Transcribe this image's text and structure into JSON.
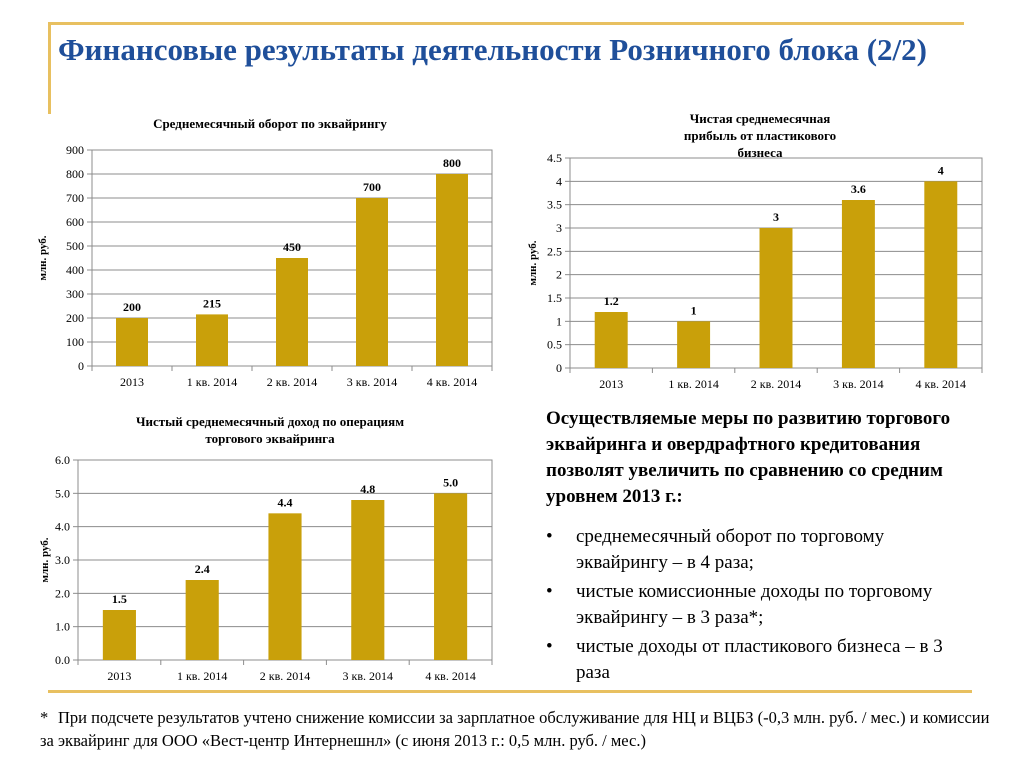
{
  "slide": {
    "title": "Финансовые результаты деятельности Розничного блока (2/2)",
    "accent_color": "#e8c060",
    "title_color": "#1f4f9a",
    "bar_color": "#c9a00a"
  },
  "chart_data": [
    {
      "type": "bar",
      "title": "Среднемесячный оборот по эквайрингу",
      "ylabel": "млн. руб.",
      "categories": [
        "2013",
        "1 кв. 2014",
        "2 кв. 2014",
        "3 кв. 2014",
        "4 кв. 2014"
      ],
      "values": [
        200,
        215,
        450,
        700,
        800
      ],
      "data_labels": [
        "200",
        "215",
        "450",
        "700",
        "800"
      ],
      "ylim": [
        0,
        900
      ],
      "ticks": [
        "0",
        "100",
        "200",
        "300",
        "400",
        "500",
        "600",
        "700",
        "800",
        "900"
      ],
      "grid": true
    },
    {
      "type": "bar",
      "title": "Чистая среднемесячная прибыль от пластикового бизнеса",
      "ylabel": "млн. руб.",
      "categories": [
        "2013",
        "1 кв. 2014",
        "2 кв. 2014",
        "3 кв. 2014",
        "4 кв. 2014"
      ],
      "values": [
        1.2,
        1,
        3,
        3.6,
        4
      ],
      "data_labels": [
        "1.2",
        "1",
        "3",
        "3.6",
        "4"
      ],
      "ylim": [
        0,
        4.5
      ],
      "ticks": [
        "0",
        "0.5",
        "1",
        "1.5",
        "2",
        "2.5",
        "3",
        "3.5",
        "4",
        "4.5"
      ],
      "grid": true
    },
    {
      "type": "bar",
      "title": "Чистый среднемесячный доход по операциям торгового эквайринга",
      "ylabel": "млн. руб.",
      "categories": [
        "2013",
        "1 кв. 2014",
        "2 кв. 2014",
        "3 кв. 2014",
        "4 кв. 2014"
      ],
      "values": [
        1.5,
        2.4,
        4.4,
        4.8,
        5.0
      ],
      "data_labels": [
        "1.5",
        "2.4",
        "4.4",
        "4.8",
        "5.0"
      ],
      "ylim": [
        0,
        6
      ],
      "ticks": [
        "0.0",
        "1.0",
        "2.0",
        "3.0",
        "4.0",
        "5.0",
        "6.0"
      ],
      "grid": true
    }
  ],
  "measures": {
    "lead": "Осуществляемые меры по развитию торгового эквайринга и овердрафтного кредитования позволят увеличить по сравнению со средним уровнем 2013 г.:",
    "bullet_symbol": "•",
    "items": [
      "среднемесячный оборот по торговому эквайрингу – в 4 раза;",
      "чистые комиссионные доходы по торговому эквайрингу – в 3 раза*;",
      "чистые доходы от пластикового бизнеса – в 3 раза"
    ]
  },
  "footnote": {
    "mark": "*",
    "text": "При подсчете результатов учтено снижение комиссии за зарплатное обслуживание для НЦ и ВЦБЗ (-0,3 млн. руб. / мес.) и комиссии за эквайринг для ООО «Вест-центр Интернешнл» (с июня 2013 г.: 0,5 млн. руб. / мес.)"
  }
}
